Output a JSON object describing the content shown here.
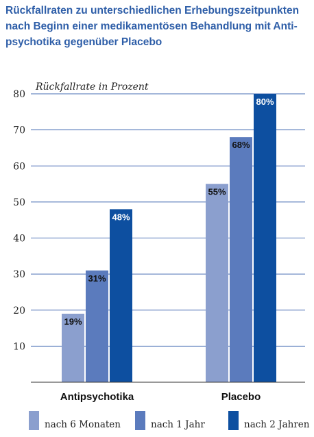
{
  "chart_data": {
    "type": "bar",
    "title_lines": [
      "Rückfallraten zu unterschiedlichen Erhebungszeitpunkten",
      "nach Beginn einer medikamentösen Behandlung mit Anti-",
      "psychotika gegenüber Placebo"
    ],
    "ylabel": "Rückfallrate in Prozent",
    "xlabel": "",
    "ylim": [
      0,
      80
    ],
    "yticks": [
      10,
      20,
      30,
      40,
      50,
      60,
      70,
      80
    ],
    "grid": true,
    "legend_position": "bottom",
    "categories": [
      "Antipsychotika",
      "Placebo"
    ],
    "series": [
      {
        "name": "nach 6 Monaten",
        "values": [
          19,
          55
        ],
        "labels": [
          "19%",
          "55%"
        ],
        "color": "#8b9fce"
      },
      {
        "name": "nach 1 Jahr",
        "values": [
          31,
          68
        ],
        "labels": [
          "31%",
          "68%"
        ],
        "color": "#5b7bbd"
      },
      {
        "name": "nach 2 Jahren",
        "values": [
          48,
          80
        ],
        "labels": [
          "48%",
          "80%"
        ],
        "color": "#0d4fa0"
      }
    ]
  }
}
